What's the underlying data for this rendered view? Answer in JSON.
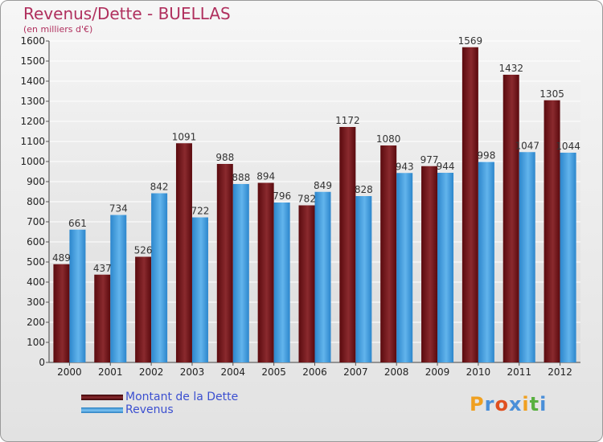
{
  "header": {
    "title": "Revenus/Dette - BUELLAS",
    "subtitle": "(en milliers d'€)"
  },
  "colors": {
    "dette": "#7a1e22",
    "revenus": "#4da3e2",
    "title": "#b0305e",
    "legend_text": "#3b4fd0"
  },
  "legend": {
    "items": [
      {
        "label": "Montant de la Dette",
        "color": "#6b0f14"
      },
      {
        "label": "Revenus",
        "color": "#4da3e2"
      }
    ]
  },
  "logo": {
    "text": "Proxiti",
    "letter_colors": [
      "#f0a020",
      "#4a8fd8",
      "#e05020",
      "#4a8fd8",
      "#f0a020",
      "#58b040",
      "#4a8fd8"
    ]
  },
  "chart_data": {
    "type": "bar",
    "categories": [
      "2000",
      "2001",
      "2002",
      "2003",
      "2004",
      "2005",
      "2006",
      "2007",
      "2008",
      "2009",
      "2010",
      "2011",
      "2012"
    ],
    "series": [
      {
        "name": "Montant de la Dette",
        "values": [
          489,
          437,
          526,
          1091,
          988,
          894,
          782,
          1172,
          1080,
          977,
          1569,
          1432,
          1305
        ]
      },
      {
        "name": "Revenus",
        "values": [
          661,
          734,
          842,
          722,
          888,
          796,
          849,
          828,
          943,
          944,
          998,
          1047,
          1044
        ]
      }
    ],
    "ylim": [
      0,
      1600
    ],
    "yticks": [
      0,
      100,
      200,
      300,
      400,
      500,
      600,
      700,
      800,
      900,
      1000,
      1100,
      1200,
      1300,
      1400,
      1500,
      1600
    ],
    "grid": true,
    "legend_position": "bottom-left"
  }
}
